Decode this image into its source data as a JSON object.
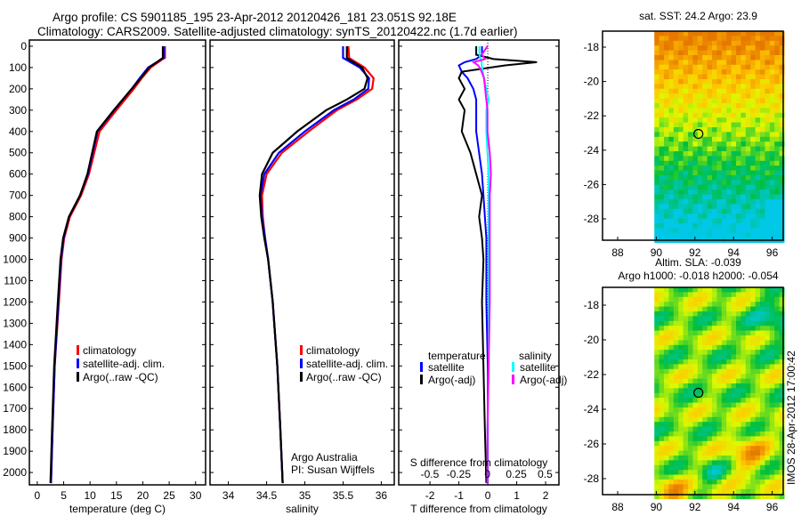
{
  "title": {
    "line1": "Argo profile: CS 5901185_195 23-Apr-2012 20120426_181 23.051S 92.18E",
    "line2": "Climatology: CARS2009. Satellite-adjusted climatology: synTS_20120422.nc (1.7d earlier)"
  },
  "colors": {
    "climatology": "#ff0000",
    "satellite": "#0000ff",
    "argo": "#000000",
    "sal_sat": "#00ffff",
    "sal_argo": "#ff00ff"
  },
  "chart_data": [
    {
      "type": "line",
      "name": "temperature",
      "xlabel": "temperature (deg C)",
      "xlim": [
        -1.5,
        31.9
      ],
      "ylim": [
        2058,
        -29
      ],
      "xticks": [
        0,
        5,
        10,
        15,
        20,
        25,
        30
      ],
      "yticks": [
        0,
        100,
        200,
        300,
        400,
        500,
        600,
        700,
        800,
        900,
        1000,
        1100,
        1200,
        1300,
        1400,
        1500,
        1600,
        1700,
        1800,
        1900,
        2000
      ],
      "depth": [
        0,
        55,
        60,
        100,
        150,
        200,
        300,
        400,
        500,
        600,
        700,
        800,
        900,
        1000,
        1200,
        1500,
        1800,
        2050
      ],
      "series": [
        {
          "name": "climatology",
          "values": [
            24.2,
            24.2,
            23.8,
            21.5,
            19.8,
            18.3,
            15,
            11.8,
            10.8,
            9.8,
            8.3,
            6.2,
            5.1,
            4.6,
            4.1,
            3.3,
            2.9,
            2.6
          ]
        },
        {
          "name": "satellite-adj. clim.",
          "values": [
            24.0,
            24.0,
            23.6,
            21.0,
            19.4,
            17.9,
            14.6,
            11.4,
            10.5,
            9.6,
            8.1,
            6.0,
            5.0,
            4.5,
            4.0,
            3.3,
            2.9,
            2.6
          ]
        },
        {
          "name": "Argo(..raw -QC)",
          "values": [
            23.8,
            23.8,
            23.5,
            21.2,
            19.6,
            17.9,
            14.5,
            11.3,
            10.4,
            9.5,
            8.1,
            6.0,
            4.9,
            4.4,
            3.9,
            3.2,
            2.8,
            2.5
          ]
        }
      ],
      "legend": [
        "climatology",
        "satellite-adj. clim.",
        "Argo(..raw -QC)"
      ],
      "legend_position": "bottom-center"
    },
    {
      "type": "line",
      "name": "salinity",
      "xlabel": "salinity",
      "xlim": [
        33.76,
        36.17
      ],
      "ylim": [
        2058,
        -29
      ],
      "xticks": [
        34,
        34.5,
        35,
        35.5,
        36
      ],
      "depth": [
        0,
        55,
        100,
        150,
        200,
        250,
        300,
        400,
        500,
        600,
        700,
        800,
        900,
        1000,
        1200,
        1500,
        1800,
        2050
      ],
      "series": [
        {
          "name": "climatology",
          "values": [
            35.57,
            35.58,
            35.78,
            35.9,
            35.88,
            35.68,
            35.42,
            35.05,
            34.7,
            34.5,
            34.44,
            34.45,
            34.48,
            34.52,
            34.58,
            34.64,
            34.68,
            34.71
          ]
        },
        {
          "name": "satellite-adj. clim.",
          "values": [
            35.5,
            35.5,
            35.72,
            35.84,
            35.83,
            35.64,
            35.38,
            35.0,
            34.66,
            34.47,
            34.42,
            34.44,
            34.48,
            34.52,
            34.58,
            34.64,
            34.68,
            34.71
          ]
        },
        {
          "name": "Argo(..raw -QC)",
          "values": [
            35.55,
            35.55,
            35.75,
            35.82,
            35.78,
            35.55,
            35.28,
            34.9,
            34.58,
            34.44,
            34.41,
            34.43,
            34.47,
            34.52,
            34.58,
            34.64,
            34.68,
            34.71
          ]
        }
      ],
      "legend": [
        "climatology",
        "satellite-adj. clim.",
        "Argo(..raw -QC)"
      ],
      "annotation": [
        "Argo Australia",
        "PI: Susan Wijffels"
      ]
    },
    {
      "type": "line",
      "name": "difference",
      "xlabel": "T difference from climatology",
      "x2label": "S difference from climatology",
      "xlim": [
        -3.08,
        2.46
      ],
      "x2lim": [
        -0.77,
        0.62
      ],
      "xticks": [
        -2,
        -1,
        0,
        1,
        2
      ],
      "x2ticks": [
        "-0.5",
        "-0.25",
        "0",
        "0.25",
        "0.5"
      ],
      "x2tickvals": [
        -0.5,
        -0.25,
        0,
        0.25,
        0.5
      ],
      "depth": [
        0,
        40,
        60,
        75,
        90,
        120,
        150,
        200,
        250,
        300,
        400,
        500,
        600,
        700,
        800,
        900,
        1000,
        1200,
        1500,
        1800,
        2050
      ],
      "series": [
        {
          "name": "temperature satellite",
          "axis": "T",
          "values": [
            -0.2,
            -0.2,
            -0.4,
            -0.8,
            -1.0,
            -0.9,
            -0.7,
            -0.5,
            -0.4,
            -0.4,
            -0.4,
            -0.3,
            -0.2,
            -0.15,
            -0.1,
            -0.05,
            -0.05,
            -0.05,
            0,
            0,
            0
          ]
        },
        {
          "name": "temperature Argo(-adj)",
          "axis": "T",
          "values": [
            -0.4,
            -0.4,
            0.2,
            1.7,
            0.6,
            -0.9,
            -1.0,
            -0.8,
            -1.0,
            -0.8,
            -0.9,
            -0.6,
            -0.4,
            -0.2,
            -0.3,
            -0.2,
            -0.15,
            -0.2,
            -0.15,
            -0.1,
            -0.05
          ]
        },
        {
          "name": "salinity satellite",
          "axis": "S",
          "values": [
            -0.07,
            -0.07,
            -0.06,
            -0.05,
            -0.05,
            -0.04,
            -0.03,
            -0.01,
            0.01,
            -0.01,
            -0.01,
            0.0,
            0.01,
            0.01,
            0.01,
            0.01,
            0.01,
            0.01,
            0.01,
            0.0,
            0.0
          ]
        },
        {
          "name": "salinity Argo(-adj)",
          "axis": "S",
          "values": [
            0.0,
            -0.05,
            -0.02,
            -0.12,
            -0.08,
            -0.05,
            -0.03,
            -0.02,
            -0.01,
            0.0,
            0.0,
            0.02,
            0.03,
            0.02,
            0.02,
            0.02,
            0.02,
            0.02,
            0.01,
            0.0,
            0.0
          ]
        }
      ],
      "legend": {
        "temp_title": "temperature",
        "sal_title": "salinity",
        "items": [
          "satellite",
          "Argo(-adj)",
          "satellite",
          "Argo(-adj)"
        ]
      }
    },
    {
      "type": "heatmap",
      "name": "sst-map",
      "title": "sat. SST: 24.2  Argo: 23.9",
      "xticks": [
        88,
        90,
        92,
        94,
        96
      ],
      "yticks": [
        -18,
        -20,
        -22,
        -24,
        -26,
        -28
      ],
      "marker": [
        92.18,
        -23.05
      ]
    },
    {
      "type": "heatmap",
      "name": "sla-map",
      "title1": "Altim. SLA: -0.039",
      "title2": "Argo h1000: -0.018 h2000: -0.054",
      "xticks": [
        88,
        90,
        92,
        94,
        96
      ],
      "yticks": [
        -18,
        -20,
        -22,
        -24,
        -26,
        -28
      ],
      "marker": [
        92.18,
        -23.05
      ]
    }
  ],
  "footer": "IMOS 28-Apr-2012 17:00:42"
}
